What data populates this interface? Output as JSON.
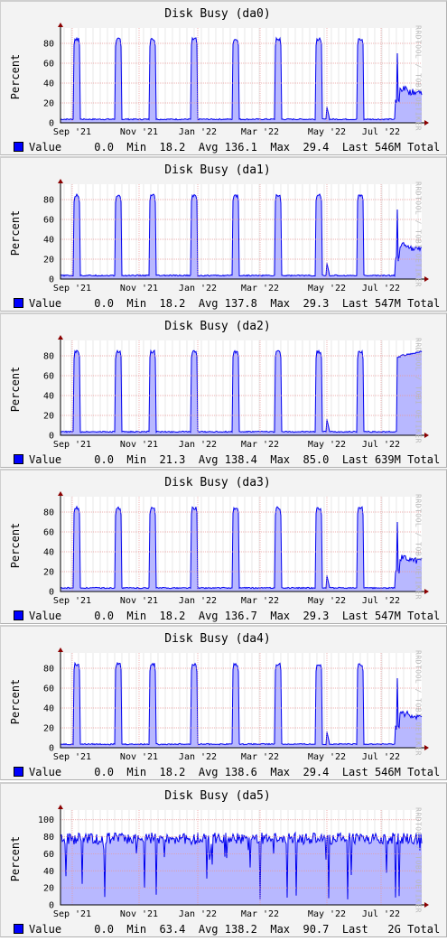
{
  "watermark": "RRDTOOL / TOBI OETIKER",
  "x_months": [
    "Sep '21",
    "Nov '21",
    "Jan '22",
    "Mar '22",
    "May '22",
    "Jul '22"
  ],
  "legend_label": "Value",
  "colors": {
    "area": "#b8b8ff",
    "line": "#0000ee",
    "grid_major": "#e89898",
    "grid_minor": "#d8d8d8",
    "swatch": "#0000ff"
  },
  "charts": [
    {
      "title": "Disk Busy (da0)",
      "ylabel": "Percent",
      "ylim": [
        0,
        90
      ],
      "yticks": [
        0,
        20,
        40,
        60,
        80
      ],
      "stats": {
        "current": "0.0",
        "min_label": "Min",
        "min": "18.2",
        "avg_label": "Avg",
        "avg": "136.1",
        "max_label": "Max",
        "max": "29.4",
        "last_label": "Last",
        "total": "546M",
        "total_label": "Total"
      },
      "chart_data": {
        "type": "area",
        "pattern": "weekly",
        "peaks": 84,
        "base": 3,
        "tail": "spike-then-30"
      }
    },
    {
      "title": "Disk Busy (da1)",
      "ylabel": "Percent",
      "ylim": [
        0,
        90
      ],
      "yticks": [
        0,
        20,
        40,
        60,
        80
      ],
      "stats": {
        "current": "0.0",
        "min_label": "Min",
        "min": "18.2",
        "avg_label": "Avg",
        "avg": "137.8",
        "max_label": "Max",
        "max": "29.3",
        "last_label": "Last",
        "total": "547M",
        "total_label": "Total"
      },
      "chart_data": {
        "type": "area",
        "pattern": "weekly",
        "peaks": 84,
        "base": 3,
        "tail": "spike-then-30"
      }
    },
    {
      "title": "Disk Busy (da2)",
      "ylabel": "Percent",
      "ylim": [
        0,
        90
      ],
      "yticks": [
        0,
        20,
        40,
        60,
        80
      ],
      "stats": {
        "current": "0.0",
        "min_label": "Min",
        "min": "21.3",
        "avg_label": "Avg",
        "avg": "138.4",
        "max_label": "Max",
        "max": "85.0",
        "last_label": "Last",
        "total": "639M",
        "total_label": "Total"
      },
      "chart_data": {
        "type": "area",
        "pattern": "weekly",
        "peaks": 84,
        "base": 3,
        "tail": "high-85"
      }
    },
    {
      "title": "Disk Busy (da3)",
      "ylabel": "Percent",
      "ylim": [
        0,
        90
      ],
      "yticks": [
        0,
        20,
        40,
        60,
        80
      ],
      "stats": {
        "current": "0.0",
        "min_label": "Min",
        "min": "18.2",
        "avg_label": "Avg",
        "avg": "136.7",
        "max_label": "Max",
        "max": "29.3",
        "last_label": "Last",
        "total": "547M",
        "total_label": "Total"
      },
      "chart_data": {
        "type": "area",
        "pattern": "weekly",
        "peaks": 84,
        "base": 3,
        "tail": "spike-then-30"
      }
    },
    {
      "title": "Disk Busy (da4)",
      "ylabel": "Percent",
      "ylim": [
        0,
        90
      ],
      "yticks": [
        0,
        20,
        40,
        60,
        80
      ],
      "stats": {
        "current": "0.0",
        "min_label": "Min",
        "min": "18.2",
        "avg_label": "Avg",
        "avg": "138.6",
        "max_label": "Max",
        "max": "29.4",
        "last_label": "Last",
        "total": "546M",
        "total_label": "Total"
      },
      "chart_data": {
        "type": "area",
        "pattern": "weekly",
        "peaks": 84,
        "base": 3,
        "tail": "spike-then-30"
      }
    },
    {
      "title": "Disk Busy (da5)",
      "ylabel": "Percent",
      "ylim": [
        0,
        105
      ],
      "yticks": [
        0,
        20,
        40,
        60,
        80,
        100
      ],
      "stats": {
        "current": "0.0",
        "min_label": "Min",
        "min": "63.4",
        "avg_label": "Avg",
        "avg": "138.2",
        "max_label": "Max",
        "max": "90.7",
        "last_label": "Last",
        "total": "2G",
        "total_label": "Total"
      },
      "chart_data": {
        "type": "area",
        "pattern": "noisy",
        "level": 78,
        "min_dips": 0
      }
    }
  ]
}
